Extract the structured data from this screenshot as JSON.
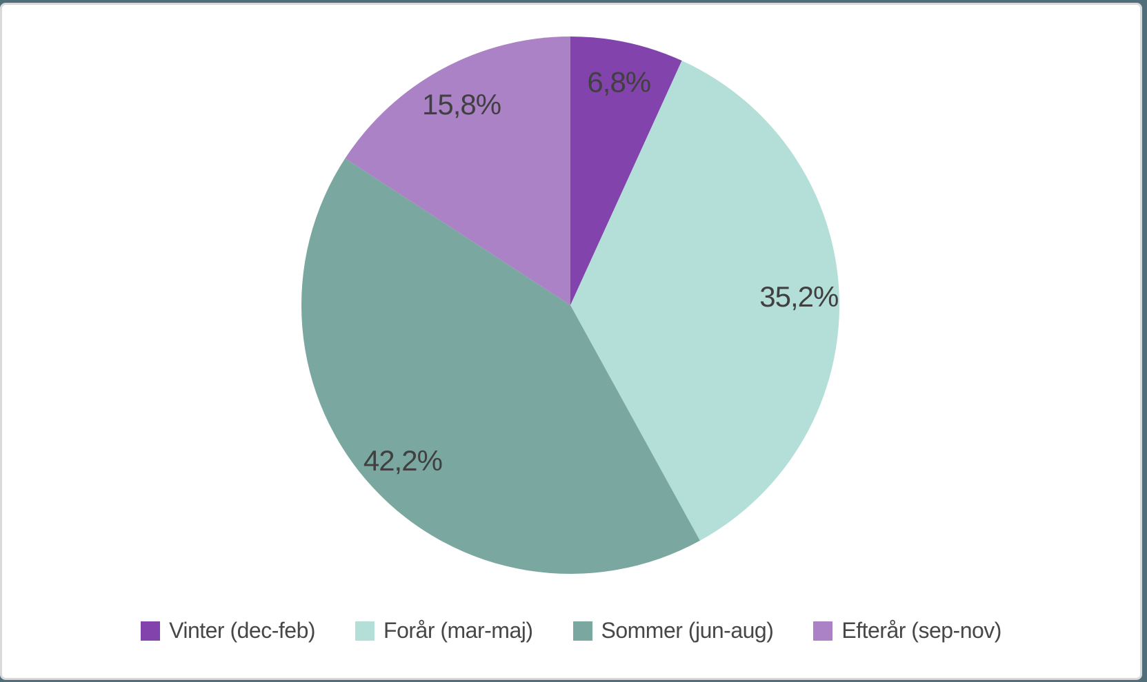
{
  "frame": {
    "background_color": "#4f6e79",
    "panel_background": "#ffffff",
    "panel_border_color": "#d9d9d9"
  },
  "chart_data": {
    "type": "pie",
    "title": "",
    "categories": [
      "Vinter (dec-feb)",
      "Forår (mar-maj)",
      "Sommer (jun-aug)",
      "Efterår (sep-nov)"
    ],
    "values": [
      6.8,
      35.2,
      42.2,
      15.8
    ],
    "value_labels": [
      "6,8%",
      "35,2%",
      "42,2%",
      "15,8%"
    ],
    "colors": [
      "#8343ac",
      "#b4dfd8",
      "#7aa8a1",
      "#ac82c6"
    ],
    "start_angle_deg": 0,
    "direction": "clockwise",
    "label_radius_fraction": 0.85,
    "label_color": "#404040",
    "legend_position": "bottom",
    "grid": false
  }
}
